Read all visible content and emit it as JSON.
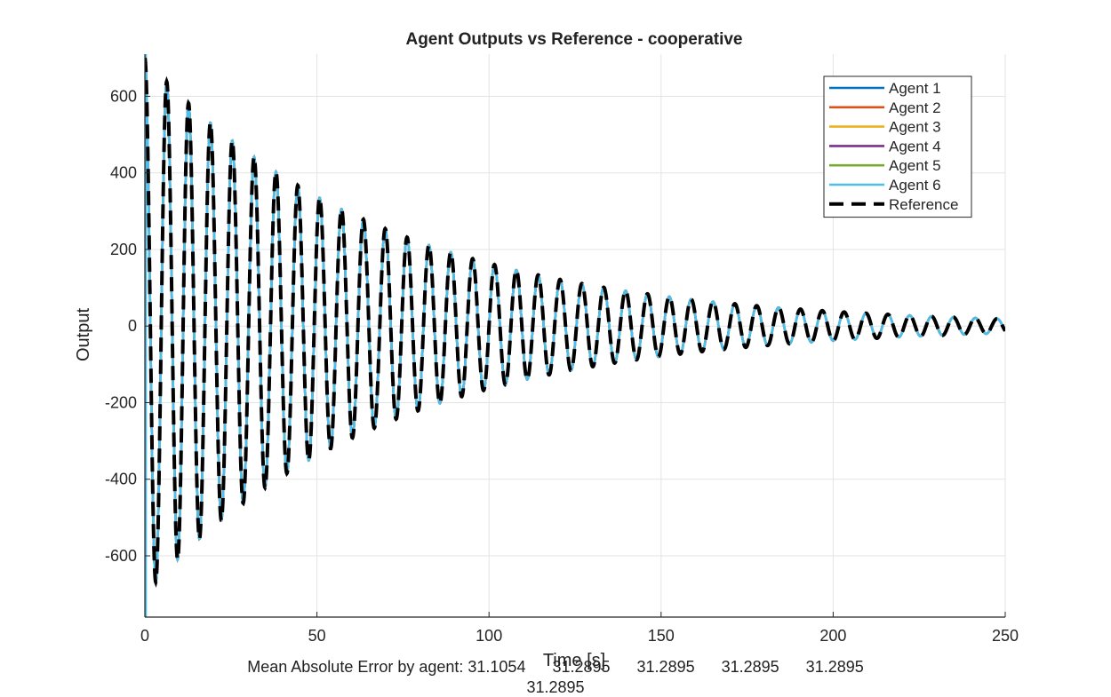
{
  "chart_data": {
    "type": "line",
    "title": "Agent Outputs vs Reference - cooperative",
    "xlabel": "Time [s]",
    "ylabel": "Output",
    "xlim": [
      0,
      250
    ],
    "ylim": [
      -760,
      710
    ],
    "xticks": [
      0,
      50,
      100,
      150,
      200,
      250
    ],
    "yticks": [
      -600,
      -400,
      -200,
      0,
      200,
      400,
      600
    ],
    "grid": true,
    "legend_position": "top-right",
    "signal": {
      "amplitude_start": 700,
      "decay_rate": 0.0145,
      "period_s": 6.35,
      "phase_rad": 0,
      "peaks": [
        {
          "t": 0.0,
          "value": 700
        },
        {
          "t": 6.35,
          "value": 700
        },
        {
          "t": 12.7,
          "value": 660
        },
        {
          "t": 19.05,
          "value": 600
        },
        {
          "t": 25.4,
          "value": 540
        },
        {
          "t": 31.75,
          "value": 490
        },
        {
          "t": 38.1,
          "value": 440
        },
        {
          "t": 44.45,
          "value": 400
        },
        {
          "t": 50.8,
          "value": 360
        },
        {
          "t": 100.8,
          "value": 170
        },
        {
          "t": 151.6,
          "value": 75
        },
        {
          "t": 202.4,
          "value": 30
        },
        {
          "t": 247.0,
          "value": 15
        }
      ],
      "troughs": [
        {
          "t": 3.2,
          "value": -700
        },
        {
          "t": 9.5,
          "value": -680
        },
        {
          "t": 15.9,
          "value": -620
        },
        {
          "t": 47.6,
          "value": -375
        },
        {
          "t": 98.4,
          "value": -180
        },
        {
          "t": 149.2,
          "value": -70
        },
        {
          "t": 199.8,
          "value": -30
        },
        {
          "t": 244.0,
          "value": -15
        }
      ]
    },
    "series": [
      {
        "name": "Agent 1",
        "color": "#0072BD",
        "style": "solid"
      },
      {
        "name": "Agent 2",
        "color": "#D95319",
        "style": "solid"
      },
      {
        "name": "Agent 3",
        "color": "#EDB120",
        "style": "solid"
      },
      {
        "name": "Agent 4",
        "color": "#7E2F8E",
        "style": "solid"
      },
      {
        "name": "Agent 5",
        "color": "#77AC30",
        "style": "solid"
      },
      {
        "name": "Agent 6",
        "color": "#4DBEEE",
        "style": "solid"
      },
      {
        "name": "Reference",
        "color": "#000000",
        "style": "dashed"
      }
    ]
  },
  "footer": {
    "line1": "Mean Absolute Error by agent: 31.1054      31.2895      31.2895      31.2895      31.2895",
    "line2": "31.2895"
  }
}
